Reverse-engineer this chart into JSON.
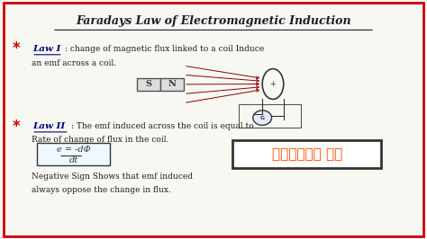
{
  "title": "Faradays Law of Electromagnetic Induction",
  "law1_label": "Law I",
  "law1_text1": ": change of magnetic flux linked to a coil Induce",
  "law1_text2": "an emf across a coil.",
  "law2_label": "Law II",
  "law2_text1": ": The emf induced across the coil is equal to",
  "law2_text2": "Rate of change of flux in the coil.",
  "formula": "e = -dΦ/dt",
  "formula_top": "e = -dΦ",
  "formula_bot": "dt",
  "law2_text3": "Negative Sign Shows that emf induced",
  "law2_text4": "always oppose the change in flux.",
  "telugu_text": "తెలుగు లో",
  "bg_color": "#f5f5f0",
  "paper_color": "#f8f8f3",
  "title_color": "#1a1a2e",
  "text_color": "#1a1a1a",
  "red_color": "#cc0000",
  "star_color": "#cc0000",
  "label_color": "#000080",
  "magnet_s_color": "#e8e8e8",
  "magnet_n_color": "#e8e8e8",
  "border_color": "#cc0000",
  "telugu_color": "#ff4500",
  "formula_border": "#333333",
  "telugu_box_border": "#333333"
}
